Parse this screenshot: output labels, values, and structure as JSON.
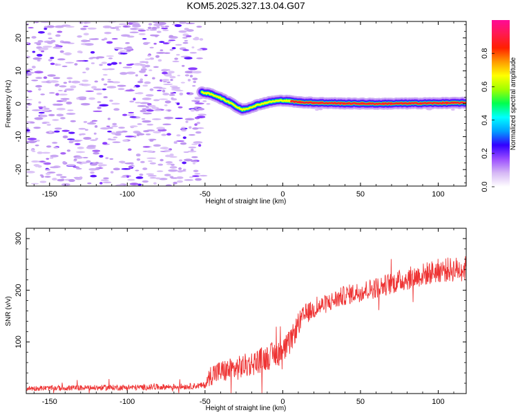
{
  "chart_data": [
    {
      "type": "heatmap",
      "title": "KOM5.2025.327.13.04.G07",
      "xlabel": "Height of straight line (km)",
      "ylabel": "Frequency (Hz)",
      "xlim": [
        -165,
        118
      ],
      "ylim": [
        -25,
        25
      ],
      "xticks": [
        -150,
        -100,
        -50,
        0,
        50,
        100
      ],
      "yticks": [
        -20,
        -10,
        0,
        10,
        20
      ],
      "noise_until_x": -51,
      "signal_track": [
        {
          "x": -52,
          "y": 3.5
        },
        {
          "x": -47,
          "y": 3.0
        },
        {
          "x": -42,
          "y": 2.2
        },
        {
          "x": -37,
          "y": 1.0
        },
        {
          "x": -33,
          "y": 0.2
        },
        {
          "x": -29,
          "y": -1.2
        },
        {
          "x": -26,
          "y": -1.8
        },
        {
          "x": -23,
          "y": -1.5
        },
        {
          "x": -19,
          "y": -0.8
        },
        {
          "x": -15,
          "y": -0.2
        },
        {
          "x": -10,
          "y": 0.4
        },
        {
          "x": -5,
          "y": 0.8
        },
        {
          "x": 0,
          "y": 1.0
        },
        {
          "x": 5,
          "y": 0.8
        },
        {
          "x": 10,
          "y": 0.5
        },
        {
          "x": 20,
          "y": 0.3
        },
        {
          "x": 30,
          "y": 0.2
        },
        {
          "x": 40,
          "y": 0.1
        },
        {
          "x": 60,
          "y": 0.0
        },
        {
          "x": 80,
          "y": 0.1
        },
        {
          "x": 100,
          "y": 0.2
        },
        {
          "x": 118,
          "y": 0.3
        }
      ],
      "colorbar": {
        "label": "Normalized spectral amplitude",
        "range": [
          0.0,
          1.0
        ],
        "ticks": [
          0.0,
          0.2,
          0.4,
          0.6,
          0.8
        ],
        "tick_labels": [
          "0.0",
          "0.2",
          "0.4",
          "0.6",
          "0.8"
        ],
        "colors": [
          "#ffffff",
          "#d6b8f5",
          "#9b4dff",
          "#3200ff",
          "#00a0ff",
          "#00ffff",
          "#00ff50",
          "#a0ff00",
          "#ffff00",
          "#ff9a00",
          "#ff2000",
          "#ff1a50",
          "#ff0a96"
        ]
      }
    },
    {
      "type": "line",
      "xlabel": "Height of straight line (km)",
      "ylabel": "SNR (v/v)",
      "xlim": [
        -165,
        118
      ],
      "ylim": [
        0,
        320
      ],
      "xticks": [
        -150,
        -100,
        -50,
        0,
        50,
        100
      ],
      "yticks": [
        100,
        200,
        300
      ],
      "color": "#ee3333",
      "trend": [
        {
          "x": -165,
          "y": 10
        },
        {
          "x": -130,
          "y": 11
        },
        {
          "x": -90,
          "y": 12
        },
        {
          "x": -60,
          "y": 14
        },
        {
          "x": -50,
          "y": 16
        },
        {
          "x": -46,
          "y": 38
        },
        {
          "x": -40,
          "y": 42
        },
        {
          "x": -30,
          "y": 48
        },
        {
          "x": -20,
          "y": 58
        },
        {
          "x": -10,
          "y": 70
        },
        {
          "x": 0,
          "y": 82
        },
        {
          "x": 5,
          "y": 100
        },
        {
          "x": 10,
          "y": 135
        },
        {
          "x": 15,
          "y": 155
        },
        {
          "x": 25,
          "y": 170
        },
        {
          "x": 40,
          "y": 190
        },
        {
          "x": 60,
          "y": 205
        },
        {
          "x": 80,
          "y": 222
        },
        {
          "x": 100,
          "y": 238
        },
        {
          "x": 118,
          "y": 242
        }
      ],
      "noise_amplitude": [
        {
          "x": -165,
          "y": 5
        },
        {
          "x": -50,
          "y": 6
        },
        {
          "x": -46,
          "y": 22
        },
        {
          "x": 0,
          "y": 26
        },
        {
          "x": 20,
          "y": 18
        },
        {
          "x": 80,
          "y": 22
        },
        {
          "x": 118,
          "y": 25
        }
      ]
    }
  ]
}
